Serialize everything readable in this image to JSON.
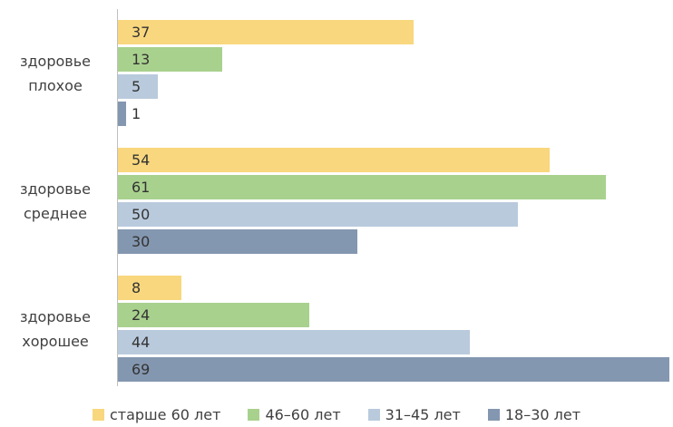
{
  "chart_data": {
    "type": "bar",
    "orientation": "horizontal",
    "categories": [
      "здоровье плохое",
      "здоровье среднее",
      "здоровье хорошее"
    ],
    "series": [
      {
        "name": "старше 60 лет",
        "color": "#f9d77e",
        "values": [
          37,
          54,
          8
        ]
      },
      {
        "name": "46–60 лет",
        "color": "#a9d18e",
        "values": [
          13,
          61,
          24
        ]
      },
      {
        "name": "31–45 лет",
        "color": "#b9cadd",
        "values": [
          5,
          50,
          44
        ]
      },
      {
        "name": "18–30 лет",
        "color": "#8497b0",
        "values": [
          1,
          30,
          69
        ]
      }
    ],
    "legend": "bottom"
  }
}
